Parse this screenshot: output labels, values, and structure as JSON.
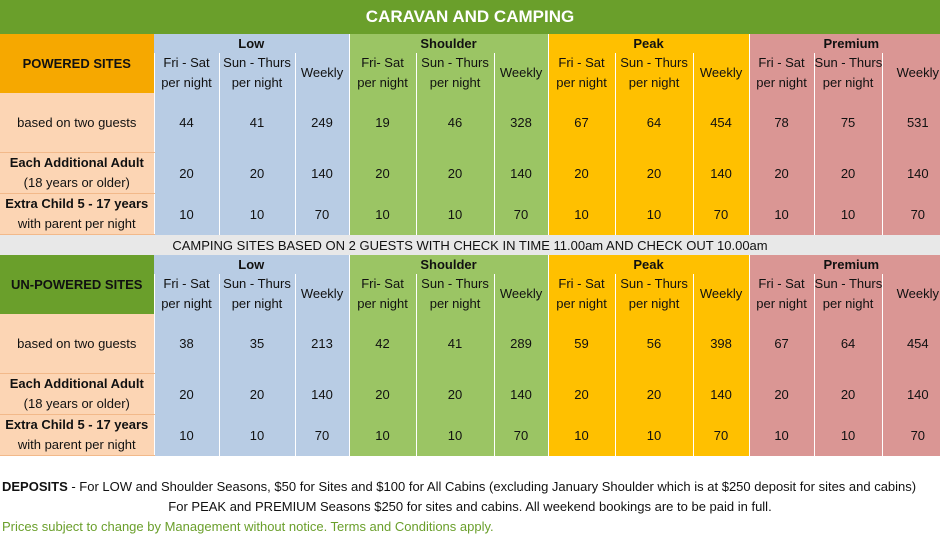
{
  "title": "CARAVAN AND CAMPING",
  "seasons": [
    "Low",
    "Shoulder",
    "Peak",
    "Premium"
  ],
  "subheaders": {
    "fri_sat": [
      "Fri - Sat",
      "per night"
    ],
    "fri_sat_alt": [
      "Fri- Sat",
      "per night"
    ],
    "sun_thurs": [
      "Sun - Thurs",
      "per night"
    ],
    "weekly": "Weekly"
  },
  "powered": {
    "heading": "POWERED SITES",
    "rows": [
      {
        "label": [
          "based on two guests"
        ],
        "values": [
          44,
          41,
          249,
          19,
          46,
          328,
          67,
          64,
          454,
          78,
          75,
          531
        ]
      },
      {
        "label": [
          "Each Additional Adult",
          "(18 years or older)"
        ],
        "values": [
          20,
          20,
          140,
          20,
          20,
          140,
          20,
          20,
          140,
          20,
          20,
          140
        ]
      },
      {
        "label": [
          "Extra Child 5 - 17 years",
          "with parent per night"
        ],
        "values": [
          10,
          10,
          70,
          10,
          10,
          70,
          10,
          10,
          70,
          10,
          10,
          70
        ]
      }
    ]
  },
  "note": "CAMPING SITES BASED ON 2 GUESTS WITH CHECK IN TIME 11.00am AND CHECK OUT 10.00am",
  "unpowered": {
    "heading": "UN-POWERED SITES",
    "rows": [
      {
        "label": [
          "based on two guests"
        ],
        "values": [
          38,
          35,
          213,
          42,
          41,
          289,
          59,
          56,
          398,
          67,
          64,
          454
        ]
      },
      {
        "label": [
          "Each Additional Adult",
          "(18 years or older)"
        ],
        "values": [
          20,
          20,
          140,
          20,
          20,
          140,
          20,
          20,
          140,
          20,
          20,
          140
        ]
      },
      {
        "label": [
          "Extra Child 5 - 17 years",
          "with parent per night"
        ],
        "values": [
          10,
          10,
          70,
          10,
          10,
          70,
          10,
          10,
          70,
          10,
          10,
          70
        ]
      }
    ]
  },
  "footer": {
    "deposits_label": "DEPOSITS",
    "line1": " - For LOW and Shoulder Seasons, $50 for Sites and $100 for All Cabins (excluding January Shoulder which is at $250 deposit for sites and cabins)",
    "line2": "For PEAK and PREMIUM Seasons $250 for sites and cabins.  All weekend bookings are to be paid in full.",
    "line3": "Prices subject to change by Management without notice. Terms and Conditions apply."
  },
  "colors": {
    "title_green": "#6a9f2b",
    "powered_orange": "#f6a800",
    "low": "#b8cce4",
    "shoulder": "#9bc564",
    "peak": "#ffc000",
    "premium": "#da9694",
    "label": "#fcd5b4"
  }
}
